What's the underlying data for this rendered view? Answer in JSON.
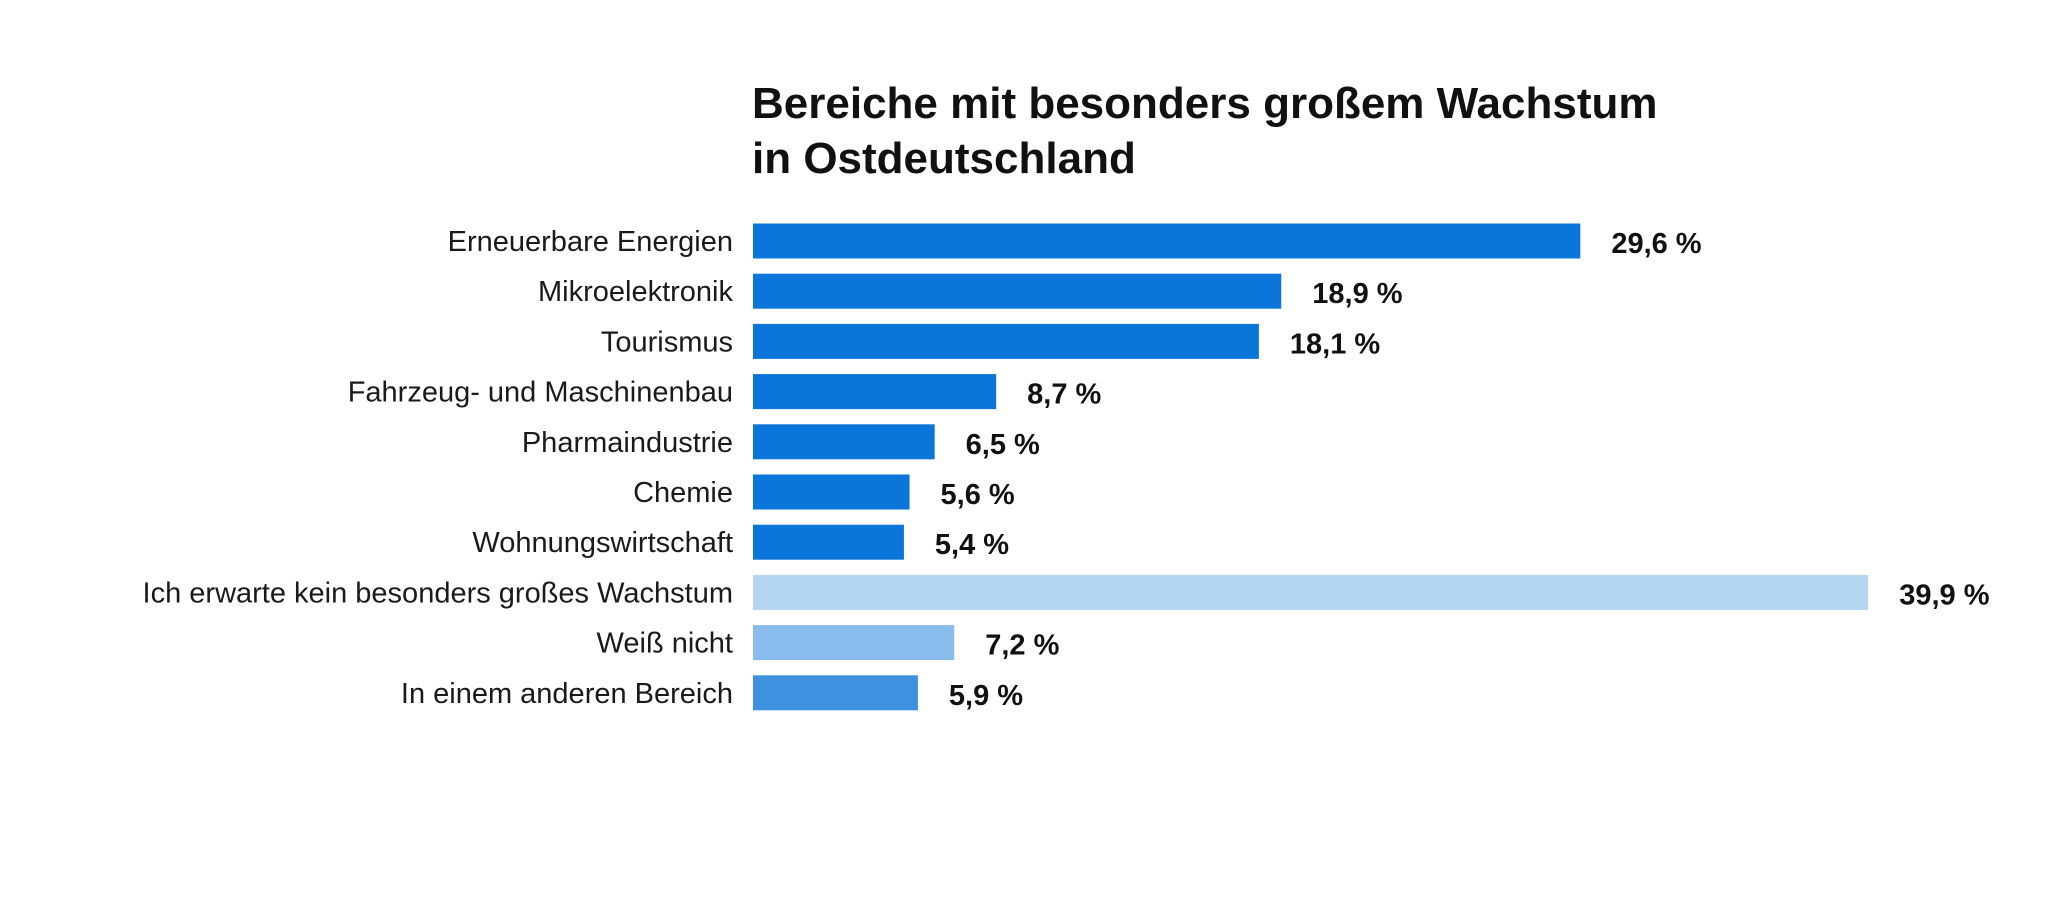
{
  "chart_data": {
    "type": "bar",
    "orientation": "horizontal",
    "title": [
      "Bereiche mit besonders großem Wachstum",
      "in Ostdeutschland"
    ],
    "categories": [
      "Erneuerbare Energien",
      "Mikroelektronik",
      "Tourismus",
      "Fahrzeug- und Maschinenbau",
      "Pharmaindustrie",
      "Chemie",
      "Wohnungswirtschaft",
      "Ich erwarte kein besonders großes Wachstum",
      "Weiß nicht",
      "In einem anderen Bereich"
    ],
    "values": [
      29.6,
      18.9,
      18.1,
      8.7,
      6.5,
      5.6,
      5.4,
      39.9,
      7.2,
      5.9
    ],
    "value_labels": [
      "29,6 %",
      "18,9 %",
      "18,1 %",
      "8,7 %",
      "6,5 %",
      "5,6 %",
      "5,4 %",
      "39,9 %",
      "7,2 %",
      "5,9 %"
    ],
    "colors": [
      "#0b76d9",
      "#0b76d9",
      "#0b76d9",
      "#0b76d9",
      "#0b76d9",
      "#0b76d9",
      "#0b76d9",
      "#b5d6f2",
      "#89bcec",
      "#3d91df"
    ],
    "xlim": [
      0,
      40
    ],
    "grid": false,
    "legend": "none",
    "xlabel": "",
    "ylabel": ""
  }
}
